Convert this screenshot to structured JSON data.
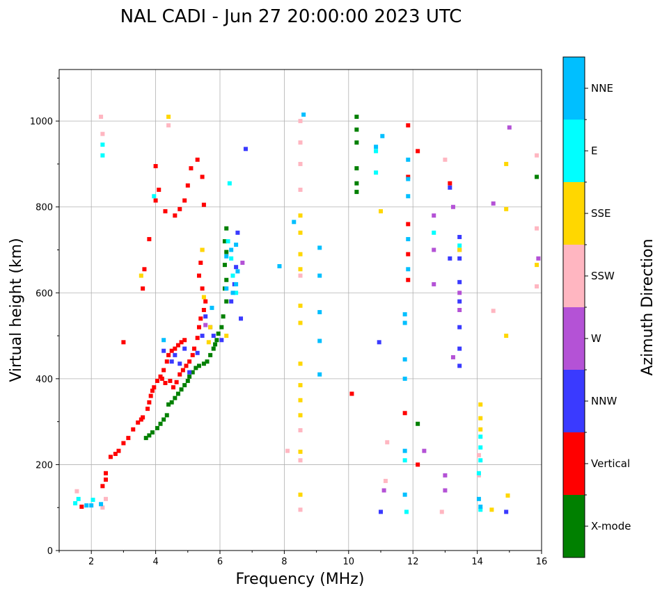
{
  "chart_data": {
    "type": "scatter",
    "title": "NAL CADI - Jun 27 20:00:00 2023 UTC",
    "xlabel": "Frequency (MHz)",
    "ylabel": "Virtual height (km)",
    "xlim": [
      1,
      16
    ],
    "ylim": [
      0,
      1120
    ],
    "xticks": [
      2,
      4,
      6,
      8,
      10,
      12,
      14,
      16
    ],
    "yticks": [
      0,
      200,
      400,
      600,
      800,
      1000
    ],
    "grid": true,
    "colorbar": {
      "label": "Azimuth Direction",
      "categories": [
        {
          "name": "X-mode",
          "color": "#008000"
        },
        {
          "name": "Vertical",
          "color": "#ff0000"
        },
        {
          "name": "NNW",
          "color": "#3a3aff"
        },
        {
          "name": "W",
          "color": "#b452d6"
        },
        {
          "name": "SSW",
          "color": "#ffb6c1"
        },
        {
          "name": "SSE",
          "color": "#ffd700"
        },
        {
          "name": "E",
          "color": "#00ffff"
        },
        {
          "name": "NNE",
          "color": "#00bfff"
        }
      ]
    },
    "series": [
      {
        "name": "X-mode",
        "points": [
          [
            3.7,
            262
          ],
          [
            3.8,
            268
          ],
          [
            3.9,
            275
          ],
          [
            4.05,
            285
          ],
          [
            4.15,
            295
          ],
          [
            4.25,
            305
          ],
          [
            4.35,
            315
          ],
          [
            4.4,
            340
          ],
          [
            4.5,
            345
          ],
          [
            4.6,
            355
          ],
          [
            4.7,
            365
          ],
          [
            4.8,
            375
          ],
          [
            4.9,
            385
          ],
          [
            5.0,
            395
          ],
          [
            5.05,
            405
          ],
          [
            5.15,
            415
          ],
          [
            5.25,
            425
          ],
          [
            5.35,
            430
          ],
          [
            5.5,
            435
          ],
          [
            5.6,
            440
          ],
          [
            5.7,
            455
          ],
          [
            5.8,
            470
          ],
          [
            5.85,
            480
          ],
          [
            5.9,
            490
          ],
          [
            5.95,
            505
          ],
          [
            6.05,
            520
          ],
          [
            6.1,
            545
          ],
          [
            6.2,
            580
          ],
          [
            6.15,
            610
          ],
          [
            6.2,
            630
          ],
          [
            6.15,
            665
          ],
          [
            6.2,
            695
          ],
          [
            6.15,
            720
          ],
          [
            6.2,
            750
          ],
          [
            10.25,
            835
          ],
          [
            10.25,
            855
          ],
          [
            10.25,
            890
          ],
          [
            10.25,
            950
          ],
          [
            10.25,
            980
          ],
          [
            10.25,
            1010
          ],
          [
            12.15,
            295
          ],
          [
            15.85,
            870
          ]
        ]
      },
      {
        "name": "Vertical",
        "points": [
          [
            1.7,
            102
          ],
          [
            2.35,
            150
          ],
          [
            2.45,
            165
          ],
          [
            2.45,
            180
          ],
          [
            2.6,
            218
          ],
          [
            2.75,
            225
          ],
          [
            2.85,
            232
          ],
          [
            3.0,
            250
          ],
          [
            3.15,
            262
          ],
          [
            3.3,
            282
          ],
          [
            3.45,
            298
          ],
          [
            3.55,
            305
          ],
          [
            3.6,
            310
          ],
          [
            3.75,
            330
          ],
          [
            3.8,
            345
          ],
          [
            3.85,
            360
          ],
          [
            3.9,
            372
          ],
          [
            3.95,
            380
          ],
          [
            4.05,
            395
          ],
          [
            4.15,
            405
          ],
          [
            4.25,
            420
          ],
          [
            4.35,
            440
          ],
          [
            4.4,
            455
          ],
          [
            4.5,
            465
          ],
          [
            4.6,
            470
          ],
          [
            4.7,
            478
          ],
          [
            4.8,
            485
          ],
          [
            4.9,
            490
          ],
          [
            4.2,
            400
          ],
          [
            4.3,
            390
          ],
          [
            4.45,
            395
          ],
          [
            4.55,
            380
          ],
          [
            4.65,
            392
          ],
          [
            4.75,
            410
          ],
          [
            4.85,
            420
          ],
          [
            4.95,
            430
          ],
          [
            5.05,
            440
          ],
          [
            5.15,
            455
          ],
          [
            5.2,
            470
          ],
          [
            5.3,
            495
          ],
          [
            5.35,
            520
          ],
          [
            5.4,
            540
          ],
          [
            5.5,
            560
          ],
          [
            5.55,
            580
          ],
          [
            5.45,
            610
          ],
          [
            5.35,
            640
          ],
          [
            5.4,
            670
          ],
          [
            5.45,
            700
          ],
          [
            3.0,
            485
          ],
          [
            3.6,
            610
          ],
          [
            3.65,
            655
          ],
          [
            3.8,
            725
          ],
          [
            4.0,
            815
          ],
          [
            4.1,
            840
          ],
          [
            4.0,
            895
          ],
          [
            4.3,
            790
          ],
          [
            4.6,
            780
          ],
          [
            4.75,
            795
          ],
          [
            4.9,
            815
          ],
          [
            5.0,
            850
          ],
          [
            5.1,
            890
          ],
          [
            5.3,
            910
          ],
          [
            5.45,
            870
          ],
          [
            5.5,
            805
          ],
          [
            12.15,
            930
          ],
          [
            13.15,
            855
          ],
          [
            12.15,
            200
          ],
          [
            10.1,
            365
          ],
          [
            11.85,
            990
          ],
          [
            11.85,
            870
          ],
          [
            11.85,
            760
          ],
          [
            11.85,
            690
          ],
          [
            11.85,
            630
          ],
          [
            11.75,
            320
          ]
        ]
      },
      {
        "name": "NNW",
        "points": [
          [
            4.25,
            465
          ],
          [
            4.5,
            440
          ],
          [
            4.6,
            455
          ],
          [
            4.75,
            435
          ],
          [
            4.9,
            470
          ],
          [
            5.05,
            415
          ],
          [
            5.3,
            460
          ],
          [
            5.45,
            500
          ],
          [
            5.55,
            545
          ],
          [
            5.7,
            520
          ],
          [
            5.8,
            500
          ],
          [
            6.05,
            490
          ],
          [
            6.35,
            580
          ],
          [
            6.45,
            620
          ],
          [
            6.5,
            660
          ],
          [
            6.55,
            740
          ],
          [
            6.65,
            540
          ],
          [
            6.8,
            935
          ],
          [
            13.45,
            430
          ],
          [
            13.45,
            470
          ],
          [
            13.45,
            520
          ],
          [
            13.45,
            580
          ],
          [
            13.45,
            625
          ],
          [
            13.45,
            680
          ],
          [
            13.45,
            730
          ],
          [
            13.15,
            680
          ],
          [
            13.15,
            845
          ],
          [
            11.0,
            90
          ],
          [
            14.9,
            90
          ],
          [
            10.95,
            485
          ]
        ]
      },
      {
        "name": "W",
        "points": [
          [
            12.65,
            620
          ],
          [
            12.65,
            700
          ],
          [
            12.65,
            780
          ],
          [
            13.25,
            450
          ],
          [
            13.25,
            800
          ],
          [
            13.45,
            560
          ],
          [
            13.45,
            600
          ],
          [
            13.45,
            700
          ],
          [
            14.5,
            808
          ],
          [
            15.0,
            985
          ],
          [
            15.9,
            680
          ],
          [
            12.35,
            232
          ],
          [
            13.0,
            175
          ],
          [
            13.0,
            140
          ],
          [
            11.1,
            140
          ],
          [
            6.7,
            670
          ],
          [
            5.55,
            525
          ]
        ]
      },
      {
        "name": "SSW",
        "points": [
          [
            1.55,
            138
          ],
          [
            2.35,
            100
          ],
          [
            2.45,
            120
          ],
          [
            2.35,
            970
          ],
          [
            2.3,
            1010
          ],
          [
            4.4,
            990
          ],
          [
            8.5,
            1000
          ],
          [
            8.5,
            950
          ],
          [
            8.5,
            900
          ],
          [
            8.5,
            840
          ],
          [
            8.5,
            640
          ],
          [
            8.5,
            280
          ],
          [
            8.5,
            210
          ],
          [
            8.5,
            95
          ],
          [
            8.1,
            232
          ],
          [
            11.2,
            252
          ],
          [
            11.15,
            162
          ],
          [
            12.9,
            90
          ],
          [
            13.0,
            910
          ],
          [
            14.5,
            558
          ],
          [
            15.85,
            920
          ],
          [
            15.85,
            750
          ],
          [
            15.85,
            615
          ],
          [
            14.05,
            222
          ],
          [
            14.05,
            175
          ]
        ]
      },
      {
        "name": "SSE",
        "points": [
          [
            3.55,
            640
          ],
          [
            4.4,
            1010
          ],
          [
            5.45,
            700
          ],
          [
            5.5,
            590
          ],
          [
            5.65,
            485
          ],
          [
            5.7,
            520
          ],
          [
            6.2,
            500
          ],
          [
            8.5,
            780
          ],
          [
            8.5,
            740
          ],
          [
            8.5,
            690
          ],
          [
            8.5,
            655
          ],
          [
            8.5,
            570
          ],
          [
            8.5,
            530
          ],
          [
            8.5,
            435
          ],
          [
            8.5,
            385
          ],
          [
            8.5,
            350
          ],
          [
            8.5,
            315
          ],
          [
            8.5,
            230
          ],
          [
            8.5,
            130
          ],
          [
            11.0,
            790
          ],
          [
            14.1,
            340
          ],
          [
            14.1,
            308
          ],
          [
            14.1,
            282
          ],
          [
            14.45,
            95
          ],
          [
            14.9,
            900
          ],
          [
            14.9,
            795
          ],
          [
            14.9,
            500
          ],
          [
            14.95,
            128
          ],
          [
            15.85,
            665
          ],
          [
            13.45,
            700
          ]
        ]
      },
      {
        "name": "E",
        "points": [
          [
            1.5,
            110
          ],
          [
            1.6,
            120
          ],
          [
            2.05,
            118
          ],
          [
            2.35,
            920
          ],
          [
            2.35,
            945
          ],
          [
            3.95,
            825
          ],
          [
            6.3,
            855
          ],
          [
            6.25,
            720
          ],
          [
            6.35,
            680
          ],
          [
            6.4,
            640
          ],
          [
            6.5,
            600
          ],
          [
            10.85,
            880
          ],
          [
            10.85,
            930
          ],
          [
            14.1,
            265
          ],
          [
            14.1,
            240
          ],
          [
            14.1,
            210
          ],
          [
            14.05,
            180
          ],
          [
            14.1,
            95
          ],
          [
            13.45,
            710
          ],
          [
            12.65,
            740
          ],
          [
            11.8,
            90
          ],
          [
            11.75,
            210
          ]
        ]
      },
      {
        "name": "NNE",
        "points": [
          [
            1.85,
            105
          ],
          [
            2.0,
            105
          ],
          [
            2.3,
            108
          ],
          [
            4.25,
            490
          ],
          [
            5.75,
            565
          ],
          [
            6.2,
            610
          ],
          [
            6.4,
            600
          ],
          [
            6.5,
            620
          ],
          [
            6.55,
            650
          ],
          [
            6.5,
            712
          ],
          [
            6.2,
            685
          ],
          [
            6.35,
            700
          ],
          [
            7.85,
            662
          ],
          [
            8.3,
            765
          ],
          [
            8.6,
            1015
          ],
          [
            9.1,
            705
          ],
          [
            9.1,
            640
          ],
          [
            9.1,
            555
          ],
          [
            9.1,
            488
          ],
          [
            9.1,
            410
          ],
          [
            10.85,
            940
          ],
          [
            11.05,
            965
          ],
          [
            11.75,
            550
          ],
          [
            11.75,
            530
          ],
          [
            11.75,
            445
          ],
          [
            11.75,
            400
          ],
          [
            11.75,
            232
          ],
          [
            11.75,
            130
          ],
          [
            11.85,
            910
          ],
          [
            11.85,
            865
          ],
          [
            11.85,
            825
          ],
          [
            11.85,
            725
          ],
          [
            11.85,
            655
          ],
          [
            14.1,
            102
          ],
          [
            14.05,
            120
          ]
        ]
      }
    ]
  }
}
